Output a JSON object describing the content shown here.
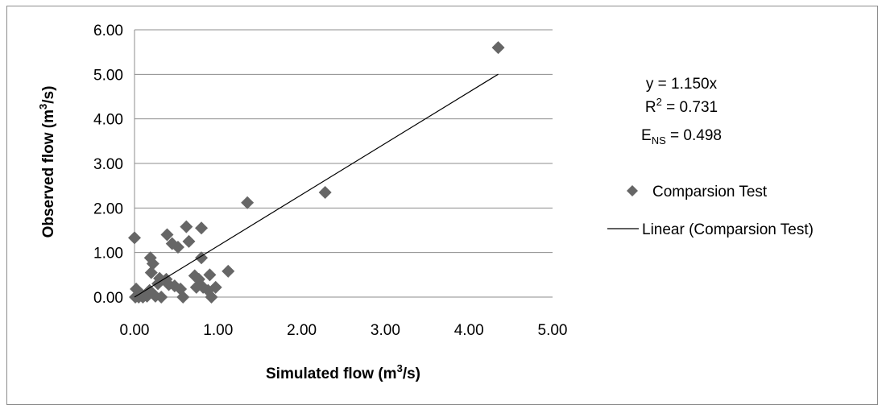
{
  "chart_data": {
    "type": "scatter",
    "title": "",
    "xlabel": {
      "pre": "Simulated flow (m",
      "sup": "3",
      "post": "/s)"
    },
    "ylabel": {
      "pre": "Observed flow (m",
      "sup": "3",
      "post": "/s)"
    },
    "xlim": [
      0,
      5
    ],
    "ylim": [
      0,
      6
    ],
    "xticks": [
      "0.00",
      "1.00",
      "2.00",
      "3.00",
      "4.00",
      "5.00"
    ],
    "yticks": [
      "0.00",
      "1.00",
      "2.00",
      "3.00",
      "4.00",
      "5.00",
      "6.00"
    ],
    "grid": "horizontal",
    "colors": {
      "marker": "#666666",
      "line": "#000000",
      "grid": "#8c8c8c",
      "border": "#8c8c8c"
    },
    "series": [
      {
        "name": "Comparsion Test",
        "marker": "diamond",
        "points": [
          [
            0.0,
            1.33
          ],
          [
            0.01,
            0.0
          ],
          [
            0.02,
            0.18
          ],
          [
            0.05,
            0.0
          ],
          [
            0.09,
            0.05
          ],
          [
            0.1,
            0.0
          ],
          [
            0.15,
            0.02
          ],
          [
            0.18,
            0.15
          ],
          [
            0.19,
            0.88
          ],
          [
            0.2,
            0.55
          ],
          [
            0.22,
            0.75
          ],
          [
            0.25,
            0.02
          ],
          [
            0.28,
            0.3
          ],
          [
            0.3,
            0.42
          ],
          [
            0.32,
            0.0
          ],
          [
            0.38,
            0.4
          ],
          [
            0.39,
            1.4
          ],
          [
            0.41,
            0.28
          ],
          [
            0.45,
            1.2
          ],
          [
            0.48,
            0.25
          ],
          [
            0.52,
            1.12
          ],
          [
            0.55,
            0.18
          ],
          [
            0.58,
            0.0
          ],
          [
            0.62,
            1.58
          ],
          [
            0.65,
            1.25
          ],
          [
            0.72,
            0.48
          ],
          [
            0.74,
            0.22
          ],
          [
            0.77,
            0.4
          ],
          [
            0.8,
            1.55
          ],
          [
            0.8,
            0.88
          ],
          [
            0.82,
            0.22
          ],
          [
            0.88,
            0.15
          ],
          [
            0.9,
            0.5
          ],
          [
            0.92,
            0.0
          ],
          [
            0.97,
            0.22
          ],
          [
            1.12,
            0.58
          ],
          [
            1.35,
            2.12
          ],
          [
            2.28,
            2.35
          ],
          [
            4.35,
            5.6
          ]
        ]
      },
      {
        "name": "Linear (Comparsion Test)",
        "type": "line",
        "slope": 1.15,
        "x_range": [
          0.0,
          4.35
        ]
      }
    ],
    "annotation": {
      "equation": "y = 1.150x",
      "r2_pre": "R",
      "r2_sup": "2",
      "r2_post": " = 0.731",
      "ens_pre": "E",
      "ens_sub": "NS",
      "ens_post": " = 0.498"
    },
    "legend": {
      "position": "right",
      "items": [
        {
          "label": "Comparsion Test",
          "symbol": "diamond"
        },
        {
          "label": "Linear (Comparsion Test)",
          "symbol": "line"
        }
      ]
    }
  }
}
